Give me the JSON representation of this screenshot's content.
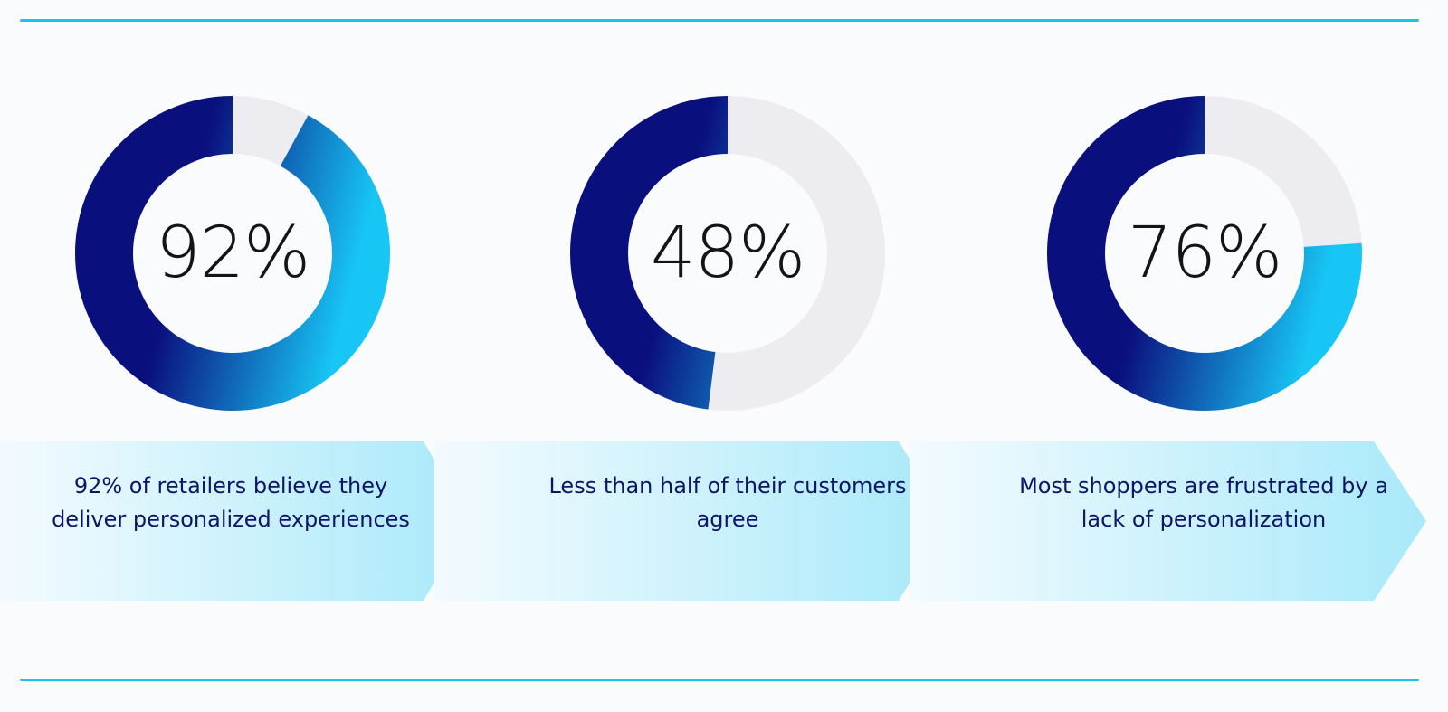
{
  "colors": {
    "rule": "#1fc2ee",
    "ring_start": "#17c6f5",
    "ring_end": "#0a0f7e",
    "track": "#ececf1",
    "pct_text": "#141414",
    "caption_text": "#0d1568",
    "band_light": "#f3fbfe",
    "band_dark": "#a9e9fa"
  },
  "chart_data": {
    "type": "pie",
    "stats": [
      {
        "value": 92,
        "value_label": "92%",
        "caption": "92% of retailers believe they deliver personalized experiences"
      },
      {
        "value": 48,
        "value_label": "48%",
        "caption": "Less than half of their customers agree"
      },
      {
        "value": 76,
        "value_label": "76%",
        "caption": "Most shoppers are frustrated by a lack of personalization"
      }
    ]
  }
}
